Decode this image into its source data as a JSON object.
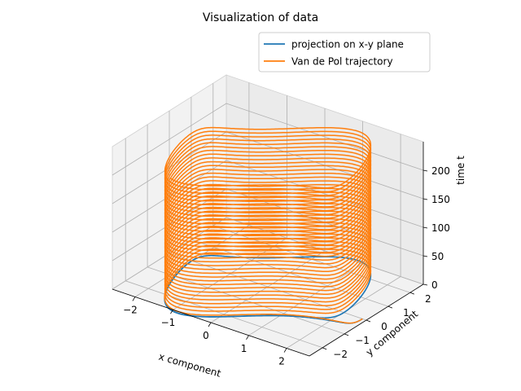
{
  "chart_data": {
    "type": "line",
    "projection": "3d",
    "title": "Visualization of data",
    "xlabel": "x component",
    "ylabel": "y component",
    "zlabel": "time t",
    "xlim": [
      -2.6,
      2.6
    ],
    "ylim": [
      -2.6,
      2.6
    ],
    "zlim": [
      0,
      250
    ],
    "xticks": [
      -2,
      -1,
      0,
      1,
      2
    ],
    "yticks": [
      -2,
      -1,
      0,
      1,
      2
    ],
    "zticks": [
      0,
      50,
      100,
      150,
      200
    ],
    "xtick_labels": [
      "−2",
      "−1",
      "0",
      "1",
      "2"
    ],
    "ytick_labels": [
      "−2",
      "−1",
      "0",
      "1",
      "2"
    ],
    "ztick_labels": [
      "0",
      "50",
      "100",
      "150",
      "200"
    ],
    "grid": true,
    "legend_position": "top-right",
    "t_range": [
      0,
      230
    ],
    "series": [
      {
        "name": "projection on x-y plane",
        "color": "#1f77b4",
        "kind": "xy-projection-at-z0"
      },
      {
        "name": "Van de Pol trajectory",
        "color": "#ff7f0e",
        "kind": "3d-trajectory"
      }
    ]
  }
}
